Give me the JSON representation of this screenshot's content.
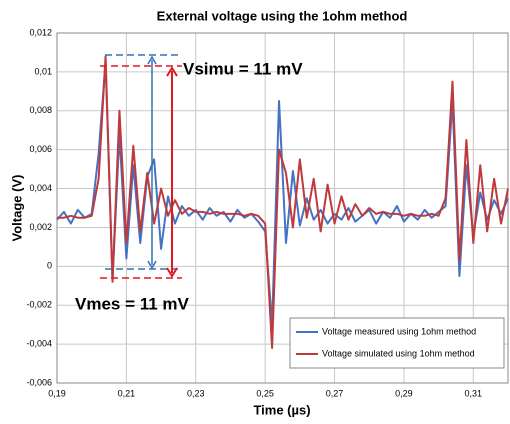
{
  "chart_data": {
    "type": "line",
    "title": "External voltage using the 1ohm method",
    "x_label": "Time (µs)",
    "y_label": "Voltage (V)",
    "xlim": [
      0.19,
      0.32
    ],
    "ylim": [
      -0.006,
      0.012
    ],
    "xticks": [
      {
        "value": 0.19,
        "label": "0,19"
      },
      {
        "value": 0.21,
        "label": "0,21"
      },
      {
        "value": 0.23,
        "label": "0,23"
      },
      {
        "value": 0.25,
        "label": "0,25"
      },
      {
        "value": 0.27,
        "label": "0,27"
      },
      {
        "value": 0.29,
        "label": "0,29"
      },
      {
        "value": 0.31,
        "label": "0,31"
      }
    ],
    "yticks": [
      {
        "value": -0.006,
        "label": "-0,006"
      },
      {
        "value": -0.004,
        "label": "-0,004"
      },
      {
        "value": -0.002,
        "label": "-0,002"
      },
      0,
      {
        "value": 0.002,
        "label": "0,002"
      },
      {
        "value": 0.004,
        "label": "0,004"
      },
      {
        "value": 0.006,
        "label": "0,006"
      },
      {
        "value": 0.008,
        "label": "0,008"
      },
      {
        "value": 0.01,
        "label": "0,01"
      },
      {
        "value": 0.012,
        "label": "0,012"
      }
    ],
    "grid": true,
    "legend": "lower right",
    "annotations": [
      {
        "text": "Vsimu = 11 mV",
        "color": "#e0191e"
      },
      {
        "text": "Vmes = 11 mV",
        "color": "#2e75b6"
      }
    ],
    "x": [
      0.19,
      0.192,
      0.194,
      0.196,
      0.198,
      0.2,
      0.202,
      0.204,
      0.206,
      0.208,
      0.21,
      0.212,
      0.214,
      0.216,
      0.218,
      0.22,
      0.222,
      0.224,
      0.226,
      0.228,
      0.23,
      0.232,
      0.234,
      0.236,
      0.238,
      0.24,
      0.242,
      0.244,
      0.246,
      0.248,
      0.25,
      0.252,
      0.254,
      0.256,
      0.258,
      0.26,
      0.262,
      0.264,
      0.266,
      0.268,
      0.27,
      0.272,
      0.274,
      0.276,
      0.278,
      0.28,
      0.282,
      0.284,
      0.286,
      0.288,
      0.29,
      0.292,
      0.294,
      0.296,
      0.298,
      0.3,
      0.302,
      0.304,
      0.306,
      0.308,
      0.31,
      0.312,
      0.314,
      0.316,
      0.318,
      0.32
    ],
    "series": [
      {
        "name": "Voltage measured using 1ohm method",
        "color": "#4472c4",
        "values": [
          0.0024,
          0.0028,
          0.0022,
          0.0029,
          0.0025,
          0.0027,
          0.0058,
          0.0105,
          -0.0007,
          0.0068,
          0.0004,
          0.0052,
          0.0012,
          0.0046,
          0.0055,
          0.0009,
          0.0036,
          0.0022,
          0.0031,
          0.0026,
          0.0029,
          0.0024,
          0.003,
          0.0026,
          0.0028,
          0.0023,
          0.0029,
          0.0025,
          0.0027,
          0.0023,
          0.0018,
          -0.003,
          0.0085,
          0.0012,
          0.0049,
          0.0021,
          0.0035,
          0.0024,
          0.0029,
          0.0022,
          0.0027,
          0.0024,
          0.003,
          0.0023,
          0.0026,
          0.0029,
          0.0022,
          0.0028,
          0.0025,
          0.0031,
          0.0023,
          0.0027,
          0.0024,
          0.0029,
          0.0025,
          0.0028,
          0.0031,
          0.0085,
          -0.0005,
          0.0052,
          0.0016,
          0.0038,
          0.0024,
          0.0034,
          0.0027,
          0.0035
        ]
      },
      {
        "name": "Voltage simulated using 1ohm method",
        "color": "#c0393b",
        "values": [
          0.0025,
          0.0025,
          0.0026,
          0.0025,
          0.0025,
          0.0026,
          0.0045,
          0.0108,
          -0.0008,
          0.008,
          0.0012,
          0.0062,
          0.0018,
          0.0048,
          0.0022,
          0.004,
          0.0026,
          0.0034,
          0.0027,
          0.003,
          0.0028,
          0.0028,
          0.0027,
          0.0028,
          0.0027,
          0.0027,
          0.0027,
          0.0026,
          0.0027,
          0.0026,
          0.0022,
          -0.0042,
          0.006,
          0.0048,
          0.002,
          0.0055,
          0.0025,
          0.0045,
          0.0018,
          0.0042,
          0.0022,
          0.0036,
          0.0024,
          0.0032,
          0.0026,
          0.003,
          0.0027,
          0.0028,
          0.0027,
          0.0027,
          0.0026,
          0.0027,
          0.0026,
          0.0026,
          0.0027,
          0.0026,
          0.0035,
          0.0095,
          0.0003,
          0.0065,
          0.0012,
          0.0052,
          0.0018,
          0.0045,
          0.0022,
          0.004
        ]
      }
    ]
  }
}
